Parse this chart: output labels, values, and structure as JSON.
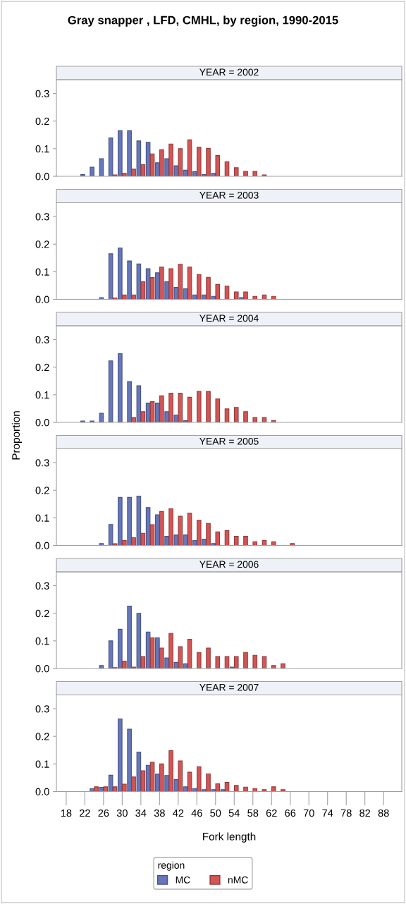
{
  "chart_data": [
    {
      "type": "bar",
      "title": "Gray snapper , LFD, CMHL, by region, 1990-2015",
      "subtitle": "YEAR = 2002",
      "legend": "bottom",
      "legend_title": "region",
      "tick_labels": "y",
      "ylim": [
        0,
        0.35
      ],
      "yticks": [
        {
          "value": 0,
          "label": "0.0"
        },
        {
          "value": 0.1,
          "label": "0.1"
        },
        {
          "value": 0.2,
          "label": "0.2"
        },
        {
          "value": 0.3,
          "label": "0.3"
        }
      ],
      "categories": [
        "18",
        null,
        "22",
        null,
        "26",
        null,
        "30",
        null,
        "34",
        null,
        "38",
        null,
        "42",
        null,
        "46",
        null,
        "50",
        null,
        "54",
        null,
        "58",
        null,
        "62",
        null,
        "66",
        null,
        "70",
        null,
        "74",
        null,
        "78",
        null,
        "82",
        null,
        "88"
      ],
      "series": [
        {
          "name": "MC",
          "color": "#6677bb",
          "values": [
            null,
            null,
            0.006,
            0.033,
            0.064,
            0.139,
            0.165,
            0.165,
            0.128,
            0.123,
            0.049,
            0.064,
            0.038,
            0.022,
            0.017,
            0.006,
            0.011,
            null,
            null,
            null,
            null,
            null,
            null,
            null,
            null,
            null,
            null,
            null,
            null,
            null,
            null,
            null,
            null,
            null,
            null
          ]
        },
        {
          "name": "nMC",
          "color": "#d45555",
          "values": [
            null,
            null,
            null,
            null,
            null,
            0.005,
            0.011,
            0.026,
            0.042,
            0.081,
            0.096,
            0.117,
            0.1,
            0.132,
            0.105,
            0.101,
            0.075,
            0.053,
            0.031,
            0.018,
            0.018,
            0.005,
            null,
            null,
            null,
            null,
            null,
            null,
            null,
            null,
            null,
            null,
            null,
            null,
            null
          ]
        }
      ]
    },
    {
      "type": "bar",
      "subtitle": "YEAR = 2003",
      "tick_labels": "y",
      "ylim": [
        0,
        0.35
      ],
      "yticks": [
        {
          "value": 0,
          "label": "0.0"
        },
        {
          "value": 0.1,
          "label": "0.1"
        },
        {
          "value": 0.2,
          "label": "0.2"
        },
        {
          "value": 0.3,
          "label": "0.3"
        }
      ],
      "categories": [
        "18",
        null,
        "22",
        null,
        "26",
        null,
        "30",
        null,
        "34",
        null,
        "38",
        null,
        "42",
        null,
        "46",
        null,
        "50",
        null,
        "54",
        null,
        "58",
        null,
        "62",
        null,
        "66",
        null,
        "70",
        null,
        "74",
        null,
        "78",
        null,
        "82",
        null,
        "88"
      ],
      "series": [
        {
          "color": "#6677bb",
          "values": [
            null,
            null,
            null,
            null,
            0.006,
            0.165,
            0.186,
            0.139,
            0.128,
            0.111,
            0.096,
            0.064,
            0.043,
            0.038,
            0.016,
            0.016,
            0.011,
            null,
            null,
            0.006,
            null,
            null,
            null,
            null,
            null,
            null,
            null,
            null,
            null,
            null,
            null,
            null,
            null,
            null,
            null
          ]
        },
        {
          "color": "#d45555",
          "values": [
            null,
            null,
            null,
            null,
            null,
            0.005,
            0.016,
            0.016,
            0.064,
            0.079,
            0.117,
            0.111,
            0.127,
            0.117,
            0.09,
            0.08,
            0.054,
            0.048,
            0.027,
            0.027,
            0.011,
            0.016,
            0.011,
            null,
            null,
            null,
            null,
            null,
            null,
            null,
            null,
            null,
            null,
            null,
            null
          ]
        }
      ]
    },
    {
      "type": "bar",
      "subtitle": "YEAR = 2004",
      "ylabel": "Proportion",
      "tick_labels": "y",
      "ylim": [
        0,
        0.35
      ],
      "yticks": [
        {
          "value": 0,
          "label": "0.0"
        },
        {
          "value": 0.1,
          "label": "0.1"
        },
        {
          "value": 0.2,
          "label": "0.2"
        },
        {
          "value": 0.3,
          "label": "0.3"
        }
      ],
      "categories": [
        "18",
        null,
        "22",
        null,
        "26",
        null,
        "30",
        null,
        "34",
        null,
        "38",
        null,
        "42",
        null,
        "46",
        null,
        "50",
        null,
        "54",
        null,
        "58",
        null,
        "62",
        null,
        "66",
        null,
        "70",
        null,
        "74",
        null,
        "78",
        null,
        "82",
        null,
        "88"
      ],
      "series": [
        {
          "color": "#6677bb",
          "values": [
            null,
            null,
            0.005,
            0.005,
            0.033,
            0.223,
            0.249,
            0.148,
            0.133,
            0.07,
            0.07,
            0.039,
            0.027,
            0.006,
            null,
            null,
            null,
            null,
            null,
            null,
            null,
            null,
            null,
            null,
            null,
            null,
            null,
            null,
            null,
            null,
            null,
            null,
            null,
            null,
            null
          ]
        },
        {
          "color": "#d45555",
          "values": [
            null,
            null,
            null,
            null,
            null,
            null,
            null,
            0.018,
            0.039,
            0.075,
            0.096,
            0.106,
            0.106,
            0.091,
            0.112,
            0.112,
            0.085,
            0.049,
            0.054,
            0.039,
            0.018,
            0.018,
            0.007,
            null,
            null,
            null,
            null,
            null,
            null,
            null,
            null,
            null,
            null,
            null,
            null
          ]
        }
      ]
    },
    {
      "type": "bar",
      "subtitle": "YEAR = 2005",
      "tick_labels": "y",
      "ylim": [
        0,
        0.35
      ],
      "yticks": [
        {
          "value": 0,
          "label": "0.0"
        },
        {
          "value": 0.1,
          "label": "0.1"
        },
        {
          "value": 0.2,
          "label": "0.2"
        },
        {
          "value": 0.3,
          "label": "0.3"
        }
      ],
      "categories": [
        "18",
        null,
        "22",
        null,
        "26",
        null,
        "30",
        null,
        "34",
        null,
        "38",
        null,
        "42",
        null,
        "46",
        null,
        "50",
        null,
        "54",
        null,
        "58",
        null,
        "62",
        null,
        "66",
        null,
        "70",
        null,
        "74",
        null,
        "78",
        null,
        "82",
        null,
        "88"
      ],
      "series": [
        {
          "color": "#6677bb",
          "values": [
            null,
            null,
            null,
            null,
            0.007,
            0.076,
            0.174,
            0.174,
            0.179,
            0.137,
            0.111,
            0.033,
            0.038,
            0.038,
            0.018,
            0.023,
            0.007,
            null,
            null,
            null,
            null,
            null,
            null,
            null,
            null,
            null,
            null,
            null,
            null,
            null,
            null,
            null,
            null,
            null,
            null
          ]
        },
        {
          "color": "#d45555",
          "values": [
            null,
            null,
            null,
            null,
            null,
            0.006,
            0.018,
            0.028,
            0.044,
            0.075,
            0.123,
            0.133,
            0.106,
            0.117,
            0.091,
            0.08,
            0.049,
            0.054,
            0.033,
            0.033,
            0.013,
            0.018,
            0.013,
            null,
            0.007,
            null,
            null,
            null,
            null,
            null,
            null,
            null,
            null,
            null,
            null
          ]
        }
      ]
    },
    {
      "type": "bar",
      "subtitle": "YEAR = 2006",
      "tick_labels": "y",
      "ylim": [
        0,
        0.35
      ],
      "yticks": [
        {
          "value": 0,
          "label": "0.0"
        },
        {
          "value": 0.1,
          "label": "0.1"
        },
        {
          "value": 0.2,
          "label": "0.2"
        },
        {
          "value": 0.3,
          "label": "0.3"
        }
      ],
      "categories": [
        "18",
        null,
        "22",
        null,
        "26",
        null,
        "30",
        null,
        "34",
        null,
        "38",
        null,
        "42",
        null,
        "46",
        null,
        "50",
        null,
        "54",
        null,
        "58",
        null,
        "62",
        null,
        "66",
        null,
        "70",
        null,
        "74",
        null,
        "78",
        null,
        "82",
        null,
        "88"
      ],
      "series": [
        {
          "color": "#6677bb",
          "values": [
            null,
            null,
            null,
            null,
            0.011,
            0.1,
            0.142,
            0.226,
            0.2,
            0.132,
            0.111,
            0.038,
            0.022,
            0.017,
            null,
            null,
            null,
            null,
            0.005,
            null,
            null,
            null,
            null,
            null,
            null,
            null,
            null,
            null,
            null,
            null,
            null,
            null,
            null,
            null,
            null
          ]
        },
        {
          "color": "#d45555",
          "values": [
            null,
            null,
            null,
            null,
            null,
            0.003,
            0.027,
            0.005,
            0.043,
            0.111,
            0.074,
            0.127,
            0.079,
            0.106,
            0.058,
            0.074,
            0.043,
            0.043,
            0.043,
            0.058,
            0.048,
            0.043,
            0.011,
            0.017,
            null,
            null,
            null,
            null,
            null,
            null,
            null,
            null,
            null,
            null,
            null
          ]
        }
      ]
    },
    {
      "type": "bar",
      "subtitle": "YEAR = 2007",
      "xlabel": "Fork length",
      "ylim": [
        0,
        0.35
      ],
      "yticks": [
        {
          "value": 0,
          "label": "0.0"
        },
        {
          "value": 0.1,
          "label": "0.1"
        },
        {
          "value": 0.2,
          "label": "0.2"
        },
        {
          "value": 0.3,
          "label": "0.3"
        }
      ],
      "categories": [
        "18",
        null,
        "22",
        null,
        "26",
        null,
        "30",
        null,
        "34",
        null,
        "38",
        null,
        "42",
        null,
        "46",
        null,
        "50",
        null,
        "54",
        null,
        "58",
        null,
        "62",
        null,
        "66",
        null,
        "70",
        null,
        "74",
        null,
        "78",
        null,
        "82",
        null,
        "88"
      ],
      "series": [
        {
          "color": "#6677bb",
          "values": [
            null,
            null,
            null,
            0.011,
            0.015,
            0.059,
            0.263,
            0.226,
            0.143,
            0.095,
            0.063,
            0.058,
            0.043,
            0.017,
            0.011,
            0.007,
            0.007,
            0.007,
            null,
            null,
            null,
            null,
            null,
            null,
            null,
            null,
            null,
            null,
            null,
            null,
            null,
            null,
            null,
            null,
            null
          ]
        },
        {
          "color": "#d45555",
          "values": [
            null,
            null,
            null,
            0.017,
            0.017,
            0.017,
            0.027,
            0.053,
            0.075,
            0.106,
            0.1,
            0.148,
            0.111,
            0.07,
            0.09,
            0.064,
            0.028,
            0.033,
            0.022,
            0.016,
            0.011,
            0.007,
            0.017,
            0.007,
            null,
            null,
            null,
            null,
            null,
            null,
            null,
            null,
            null,
            null,
            null
          ]
        }
      ]
    }
  ]
}
